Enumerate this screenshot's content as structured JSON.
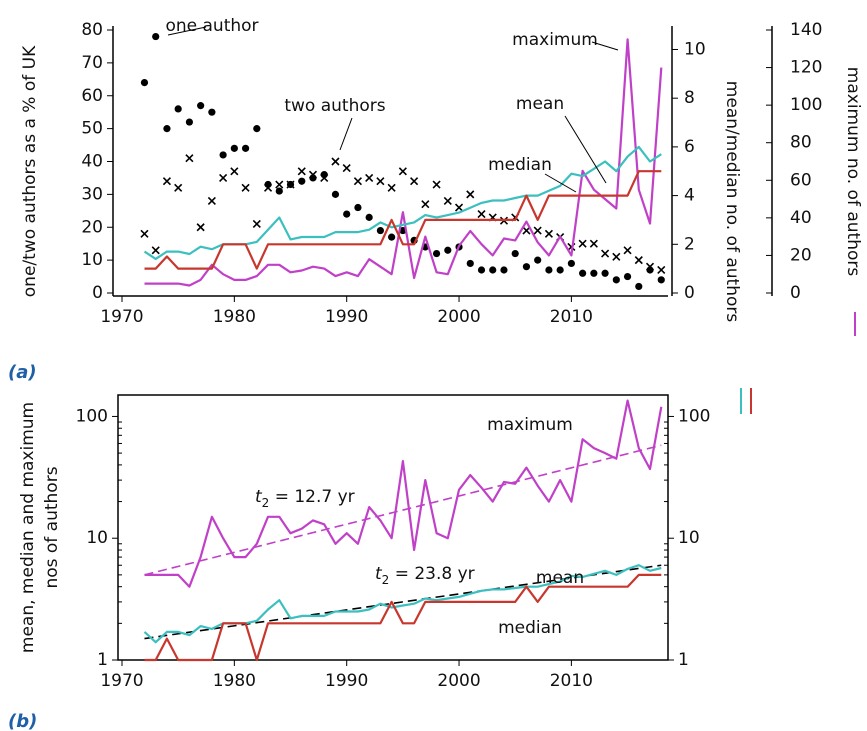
{
  "chart_data": [
    {
      "type": "line",
      "panel_label": "(a)",
      "xlim": [
        1970,
        2018.6
      ],
      "xticks": [
        1970,
        1980,
        1990,
        2000,
        2010
      ],
      "ylim": [
        0,
        80
      ],
      "yticks": [
        0,
        10,
        20,
        30,
        40,
        50,
        60,
        70,
        80
      ],
      "ylabel": "one/two authors as a % of UK",
      "y2lim": [
        0,
        10.8
      ],
      "y2ticks": [
        0,
        2,
        4,
        6,
        8,
        10
      ],
      "y2label": "mean/median no. of authors",
      "y3lim": [
        0,
        140
      ],
      "y3ticks": [
        0,
        20,
        40,
        60,
        80,
        100,
        120,
        140
      ],
      "y3label": "maximum no. of authors",
      "x": [
        1972,
        1973,
        1974,
        1975,
        1976,
        1977,
        1978,
        1979,
        1980,
        1981,
        1982,
        1983,
        1984,
        1985,
        1986,
        1987,
        1988,
        1989,
        1990,
        1991,
        1992,
        1993,
        1994,
        1995,
        1996,
        1997,
        1998,
        1999,
        2000,
        2001,
        2002,
        2003,
        2004,
        2005,
        2006,
        2007,
        2008,
        2009,
        2010,
        2011,
        2012,
        2013,
        2014,
        2015,
        2016,
        2017,
        2018
      ],
      "series": [
        {
          "name": "one author",
          "kind": "scatter",
          "marker": "dot",
          "color": "#000000",
          "label_color": "#000000",
          "axis": "y",
          "values": [
            64,
            78,
            50,
            56,
            52,
            57,
            55,
            42,
            44,
            44,
            50,
            33,
            31,
            33,
            34,
            35,
            36,
            30,
            24,
            26,
            23,
            19,
            17,
            19,
            16,
            14,
            12,
            13,
            14,
            9,
            7,
            7,
            7,
            12,
            8,
            10,
            7,
            7,
            9,
            6,
            6,
            6,
            4,
            5,
            2,
            7,
            4
          ]
        },
        {
          "name": "two authors",
          "kind": "scatter",
          "marker": "cross",
          "color": "#000000",
          "label_color": "#000000",
          "axis": "y",
          "values": [
            18,
            13,
            34,
            32,
            41,
            20,
            28,
            35,
            37,
            32,
            21,
            32,
            33,
            33,
            37,
            36,
            35,
            40,
            38,
            34,
            35,
            34,
            32,
            37,
            34,
            27,
            33,
            28,
            26,
            30,
            24,
            23,
            22,
            23,
            19,
            19,
            18,
            17,
            14,
            15,
            15,
            12,
            11,
            13,
            10,
            8,
            7
          ]
        },
        {
          "name": "maximum",
          "kind": "line",
          "color": "#c040c8",
          "label_color": "#a040c8",
          "axis": "y3",
          "values": [
            5,
            5,
            5,
            5,
            4,
            7,
            15,
            10,
            7,
            7,
            9,
            15,
            15,
            11,
            12,
            14,
            13,
            9,
            11,
            9,
            18,
            14,
            10,
            43,
            8,
            30,
            11,
            10,
            25,
            33,
            26,
            20,
            29,
            28,
            38,
            27,
            20,
            30,
            20,
            65,
            55,
            50,
            45,
            135,
            55,
            37,
            120
          ]
        },
        {
          "name": "mean",
          "kind": "line",
          "color": "#3cbfbf",
          "label_color": "#20a8a8",
          "axis": "y2",
          "values": [
            1.7,
            1.4,
            1.7,
            1.7,
            1.6,
            1.9,
            1.8,
            2.0,
            2.0,
            2.0,
            2.1,
            2.6,
            3.1,
            2.2,
            2.3,
            2.3,
            2.3,
            2.5,
            2.5,
            2.5,
            2.6,
            2.9,
            2.7,
            2.8,
            2.9,
            3.2,
            3.1,
            3.2,
            3.3,
            3.5,
            3.7,
            3.8,
            3.8,
            3.9,
            4.0,
            4.0,
            4.2,
            4.4,
            4.9,
            4.8,
            5.1,
            5.4,
            5.0,
            5.6,
            6.0,
            5.4,
            5.7
          ]
        },
        {
          "name": "median",
          "kind": "line",
          "color": "#c8372d",
          "label_color": "#d88a10",
          "axis": "y2",
          "values": [
            1,
            1,
            1.5,
            1,
            1,
            1,
            1,
            2,
            2,
            2,
            1,
            2,
            2,
            2,
            2,
            2,
            2,
            2,
            2,
            2,
            2,
            2,
            3,
            2,
            2,
            3,
            3,
            3,
            3,
            3,
            3,
            3,
            3,
            3,
            4,
            3,
            4,
            4,
            4,
            4,
            4,
            4,
            4,
            4,
            5,
            5,
            5
          ]
        }
      ]
    },
    {
      "type": "line",
      "panel_label": "(b)",
      "log_y": true,
      "xlim": [
        1970,
        2018.6
      ],
      "xticks": [
        1970,
        1980,
        1990,
        2000,
        2010
      ],
      "ylim": [
        1,
        150
      ],
      "yticks": [
        1,
        10,
        100
      ],
      "ylabel": [
        "mean, median and maximum",
        "nos of authors"
      ],
      "x": [
        1972,
        1973,
        1974,
        1975,
        1976,
        1977,
        1978,
        1979,
        1980,
        1981,
        1982,
        1983,
        1984,
        1985,
        1986,
        1987,
        1988,
        1989,
        1990,
        1991,
        1992,
        1993,
        1994,
        1995,
        1996,
        1997,
        1998,
        1999,
        2000,
        2001,
        2002,
        2003,
        2004,
        2005,
        2006,
        2007,
        2008,
        2009,
        2010,
        2011,
        2012,
        2013,
        2014,
        2015,
        2016,
        2017,
        2018
      ],
      "series": [
        {
          "name": "maximum",
          "kind": "line",
          "color": "#c040c8",
          "label_color": "#a040c8",
          "values": [
            5,
            5,
            5,
            5,
            4,
            7,
            15,
            10,
            7,
            7,
            9,
            15,
            15,
            11,
            12,
            14,
            13,
            9,
            11,
            9,
            18,
            14,
            10,
            43,
            8,
            30,
            11,
            10,
            25,
            33,
            26,
            20,
            29,
            28,
            38,
            27,
            20,
            30,
            20,
            65,
            55,
            50,
            45,
            135,
            55,
            37,
            120
          ]
        },
        {
          "name": "mean",
          "kind": "line",
          "color": "#3cbfbf",
          "label_color": "#20a8a8",
          "values": [
            1.7,
            1.4,
            1.7,
            1.7,
            1.6,
            1.9,
            1.8,
            2.0,
            2.0,
            2.0,
            2.1,
            2.6,
            3.1,
            2.2,
            2.3,
            2.3,
            2.3,
            2.5,
            2.5,
            2.5,
            2.6,
            2.9,
            2.7,
            2.8,
            2.9,
            3.2,
            3.1,
            3.2,
            3.3,
            3.5,
            3.7,
            3.8,
            3.8,
            3.9,
            4.0,
            4.0,
            4.2,
            4.4,
            4.9,
            4.8,
            5.1,
            5.4,
            5.0,
            5.6,
            6.0,
            5.4,
            5.7
          ]
        },
        {
          "name": "median",
          "kind": "line",
          "color": "#c8372d",
          "label_color": "#d88a10",
          "values": [
            1,
            1,
            1.5,
            1,
            1,
            1,
            1,
            2,
            2,
            2,
            1,
            2,
            2,
            2,
            2,
            2,
            2,
            2,
            2,
            2,
            2,
            2,
            3,
            2,
            2,
            3,
            3,
            3,
            3,
            3,
            3,
            3,
            3,
            3,
            4,
            3,
            4,
            4,
            4,
            4,
            4,
            4,
            4,
            4,
            5,
            5,
            5
          ]
        }
      ],
      "trend_lines": [
        {
          "x": [
            1972,
            2018
          ],
          "values": [
            5,
            58
          ],
          "color": "#c040c8",
          "symbol": "t",
          "subscript": "2",
          "text": " = 12.7 yr"
        },
        {
          "x": [
            1972,
            2018
          ],
          "values": [
            1.5,
            6.0
          ],
          "color": "#000000",
          "symbol": "t",
          "subscript": "2",
          "text": " = 23.8 yr"
        }
      ]
    }
  ]
}
